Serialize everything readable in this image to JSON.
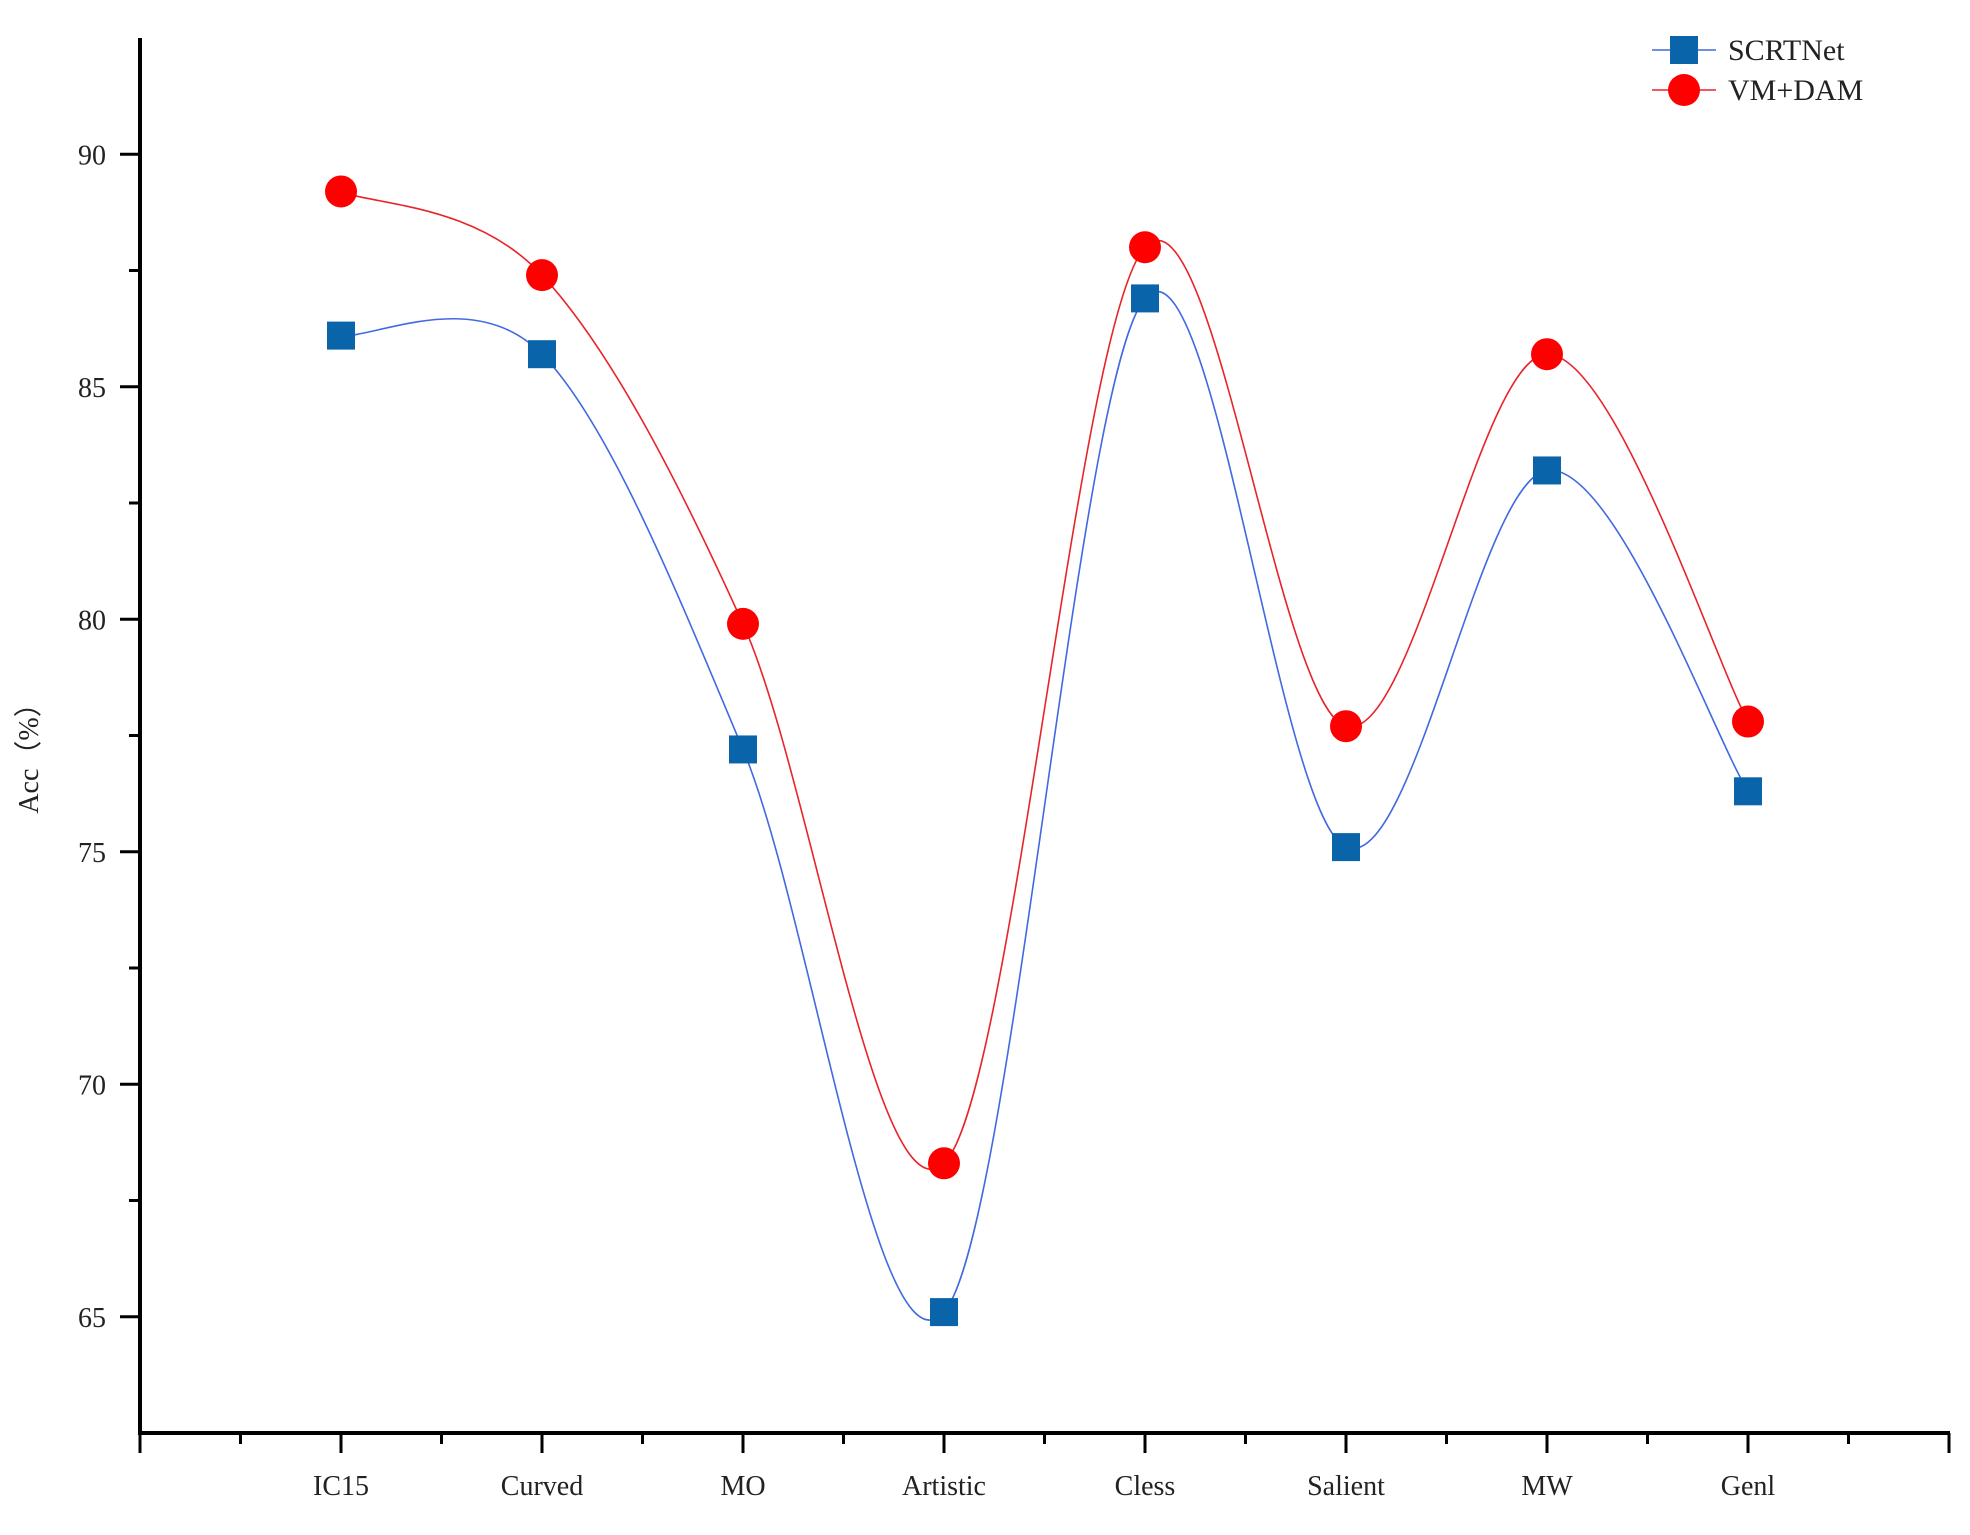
{
  "chart_data": {
    "type": "line",
    "title": "",
    "xlabel": "",
    "ylabel": "Acc（%）",
    "categories": [
      "IC15",
      "Curved",
      "MO",
      "Artistic",
      "Cless",
      "Salient",
      "MW",
      "Genl"
    ],
    "ylim": [
      62.5,
      92.5
    ],
    "yticks": [
      65,
      70,
      75,
      80,
      85,
      90
    ],
    "grid": false,
    "legend_position": "top-right",
    "series": [
      {
        "name": "SCRTNet",
        "marker": "square",
        "line_color": "#4169e1",
        "marker_color": "#0a64aa",
        "values": [
          86.1,
          85.7,
          77.2,
          65.1,
          86.9,
          75.1,
          83.2,
          76.3
        ]
      },
      {
        "name": "VM+DAM",
        "marker": "circle",
        "line_color": "#e8242a",
        "marker_color": "#ff0000",
        "values": [
          89.2,
          87.4,
          79.9,
          68.3,
          88.0,
          77.7,
          85.7,
          77.8
        ]
      }
    ]
  }
}
